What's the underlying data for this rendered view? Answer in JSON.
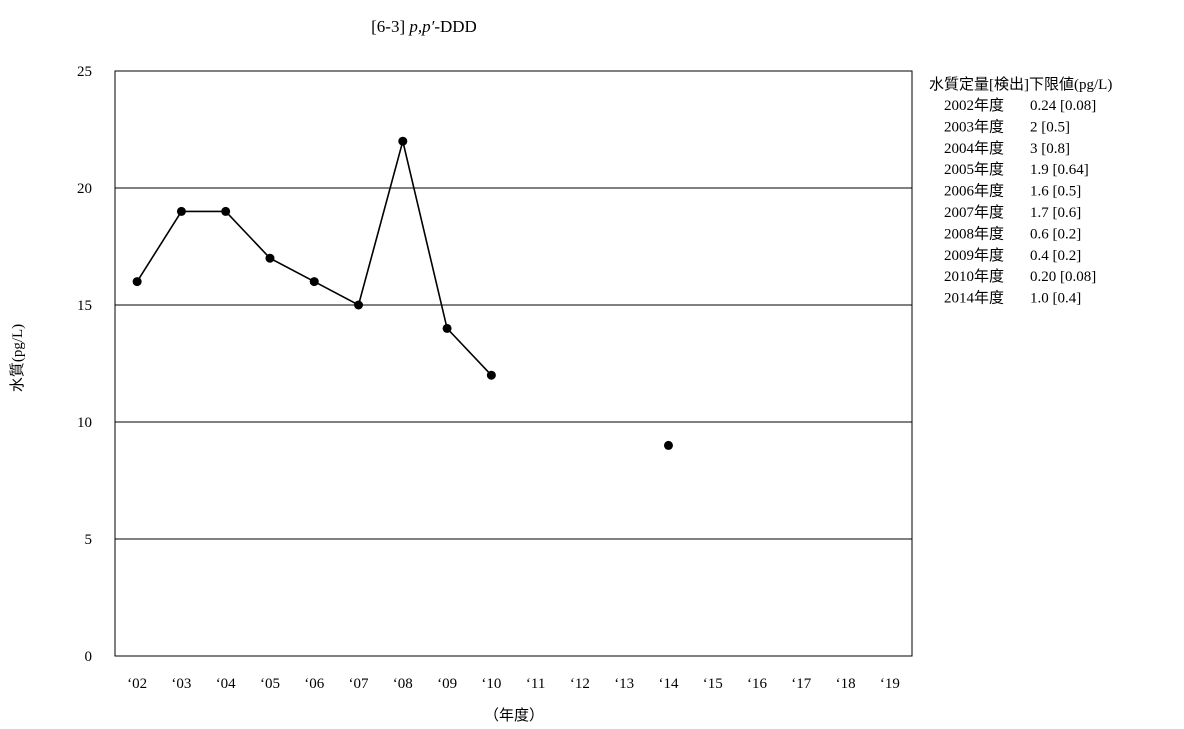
{
  "chart_data": {
    "type": "line",
    "title_prefix": "[6-3] ",
    "title_italic": "p,p′",
    "title_suffix": "-DDD",
    "xlabel": "（年度）",
    "ylabel": "水質(pg/L)",
    "ylim": [
      0,
      25
    ],
    "yticks": [
      0,
      5,
      10,
      15,
      20,
      25
    ],
    "grid": true,
    "categories": [
      "‘02",
      "‘03",
      "‘04",
      "‘05",
      "‘06",
      "‘07",
      "‘08",
      "‘09",
      "‘10",
      "‘11",
      "‘12",
      "‘13",
      "‘14",
      "‘15",
      "‘16",
      "‘17",
      "‘18",
      "‘19"
    ],
    "series": [
      {
        "values": [
          16,
          19,
          19,
          17,
          16,
          15,
          22,
          14,
          12,
          null,
          null,
          null,
          9,
          null,
          null,
          null,
          null,
          null
        ],
        "color": "#000000"
      }
    ],
    "legend": {
      "placement": "right",
      "title": "水質定量[検出]下限値(pg/L)",
      "rows": [
        {
          "year": "2002年度",
          "value": "0.24 [0.08]"
        },
        {
          "year": "2003年度",
          "value": "2 [0.5]"
        },
        {
          "year": "2004年度",
          "value": "3 [0.8]"
        },
        {
          "year": "2005年度",
          "value": "1.9 [0.64]"
        },
        {
          "year": "2006年度",
          "value": "1.6 [0.5]"
        },
        {
          "year": "2007年度",
          "value": "1.7 [0.6]"
        },
        {
          "year": "2008年度",
          "value": "0.6 [0.2]"
        },
        {
          "year": "2009年度",
          "value": "0.4 [0.2]"
        },
        {
          "year": "2010年度",
          "value": "0.20 [0.08]"
        },
        {
          "year": "2014年度",
          "value": "1.0 [0.4]"
        }
      ]
    }
  }
}
